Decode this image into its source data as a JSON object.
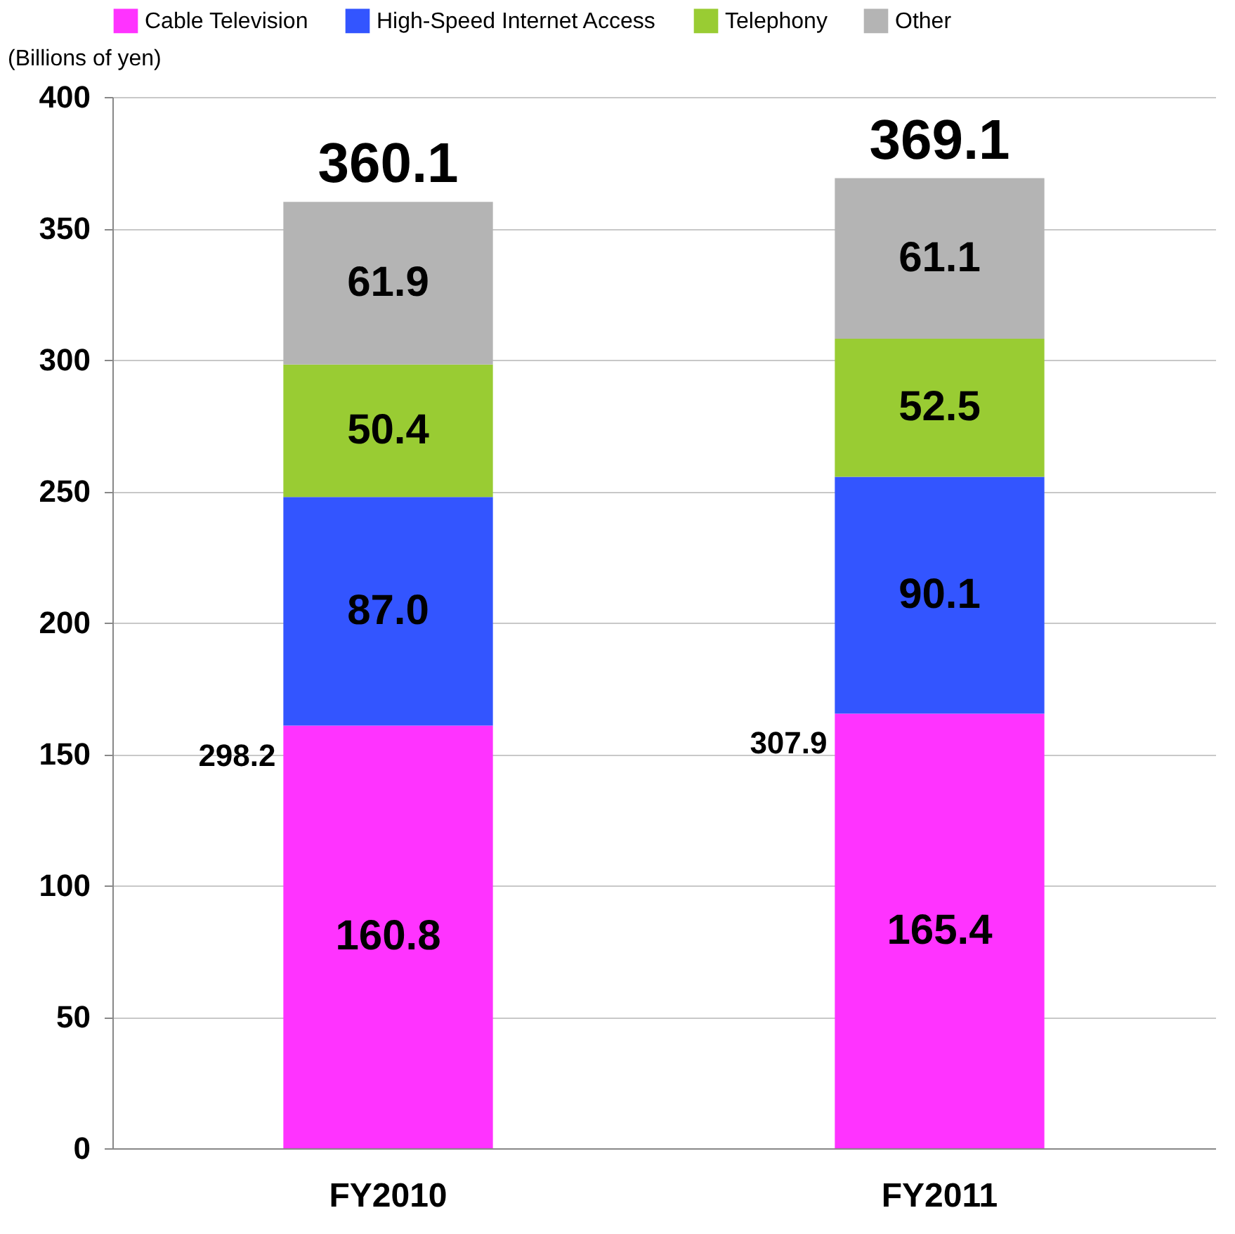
{
  "chart_data": {
    "type": "bar",
    "stacked": true,
    "ylabel": "(Billions of yen)",
    "categories": [
      "FY2010",
      "FY2011"
    ],
    "series": [
      {
        "name": "Cable Television",
        "color": "#ff33ff",
        "values": [
          160.8,
          165.4
        ]
      },
      {
        "name": "High-Speed Internet Access",
        "color": "#3355ff",
        "values": [
          87.0,
          90.1
        ]
      },
      {
        "name": "Telephony",
        "color": "#99cc33",
        "values": [
          50.4,
          52.5
        ]
      },
      {
        "name": "Other",
        "color": "#b4b4b4",
        "values": [
          61.9,
          61.1
        ]
      }
    ],
    "ylim": [
      0,
      400
    ],
    "yticks": [
      0,
      50,
      100,
      150,
      200,
      250,
      300,
      350,
      400
    ],
    "grid": "y",
    "legend": "top",
    "value_labels": [
      [
        "160.8",
        "165.4"
      ],
      [
        "87.0",
        "90.1"
      ],
      [
        "50.4",
        "52.5"
      ],
      [
        "61.9",
        "61.1"
      ]
    ],
    "totals": [
      "360.1",
      "369.1"
    ],
    "annotations": [
      "298.2",
      "307.9"
    ]
  }
}
